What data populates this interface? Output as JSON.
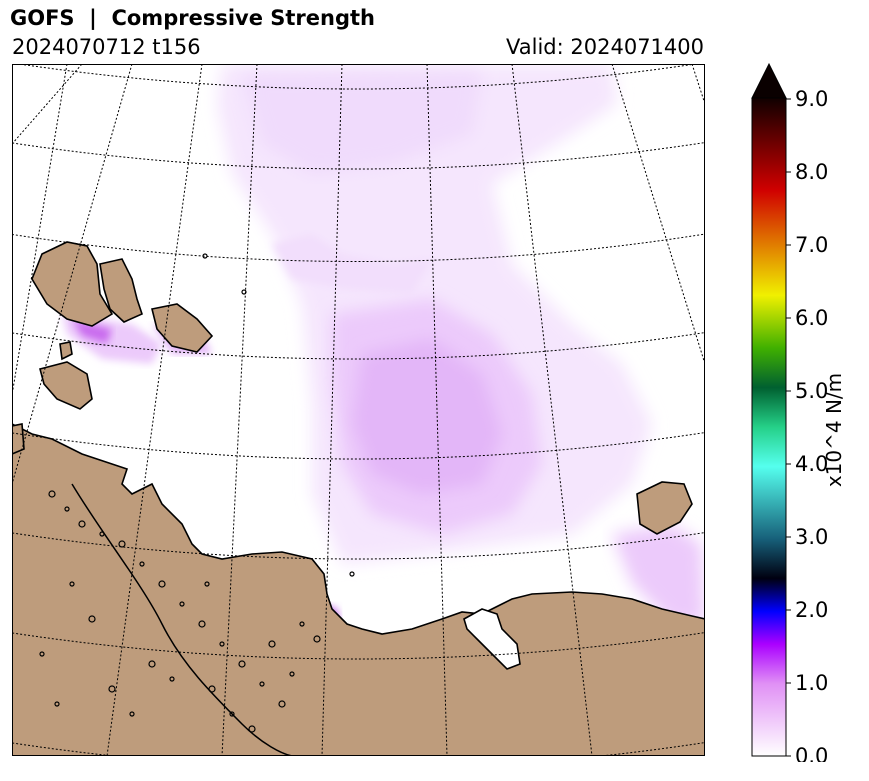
{
  "header": {
    "title": "GOFS  |  Compressive Strength",
    "run": "2024070712 t156",
    "valid": "Valid: 2024071400"
  },
  "colorbar": {
    "unit_label": "x10^4 N/m",
    "ticks": [
      "0.0",
      "1.0",
      "2.0",
      "3.0",
      "4.0",
      "5.0",
      "6.0",
      "7.0",
      "8.0",
      "9.0"
    ],
    "range": [
      0,
      9
    ],
    "extend": "max"
  },
  "colors": {
    "land": "#be9c7c",
    "ice_light": "#f5e6fd",
    "ice_mid": "#eccafb",
    "ice_strong": "#e3b6f8",
    "ice_peak": "#c060ea"
  }
}
